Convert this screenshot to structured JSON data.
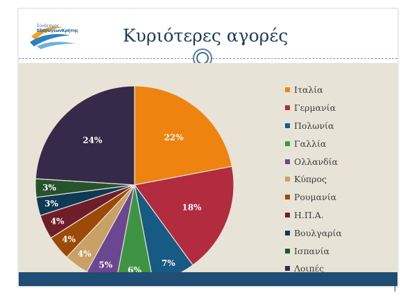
{
  "slide": {
    "title": "Κυριότερες αγορές",
    "logo_line1": "Σύνδεσμος",
    "logo_line2": "ΕξαγωγέωνΚρήτης"
  },
  "colors": {
    "header_rule": "#7b92ad",
    "content_bg": "#e8e3d7",
    "footer_bar": "#1f4d73",
    "title": "#1e3b5c"
  },
  "chart_data": {
    "type": "pie",
    "title": "",
    "legend": "right",
    "slices": [
      {
        "label": "Ιταλία",
        "value": 22,
        "value_label": "22%",
        "color": "#ef8310"
      },
      {
        "label": "Γερμανία",
        "value": 18,
        "value_label": "18%",
        "color": "#b22b3f"
      },
      {
        "label": "Πολωνία",
        "value": 7,
        "value_label": "7%",
        "color": "#175a83"
      },
      {
        "label": "Γαλλία",
        "value": 6,
        "value_label": "6%",
        "color": "#3f9443"
      },
      {
        "label": "Ολλανδία",
        "value": 5,
        "value_label": "5%",
        "color": "#6a4790"
      },
      {
        "label": "Κύπρος",
        "value": 4,
        "value_label": "4%",
        "color": "#c9a065"
      },
      {
        "label": "Ρουμανία",
        "value": 4,
        "value_label": "4%",
        "color": "#9c4a08"
      },
      {
        "label": "Η.Π.Α.",
        "value": 4,
        "value_label": "4%",
        "color": "#6e1d2b"
      },
      {
        "label": "Βουλγαρία",
        "value": 3,
        "value_label": "3%",
        "color": "#0f3a56"
      },
      {
        "label": "Ισπανία",
        "value": 3,
        "value_label": "3%",
        "color": "#27532c"
      },
      {
        "label": "Λοιπές",
        "value": 24,
        "value_label": "24%",
        "color": "#362a4a"
      }
    ]
  }
}
